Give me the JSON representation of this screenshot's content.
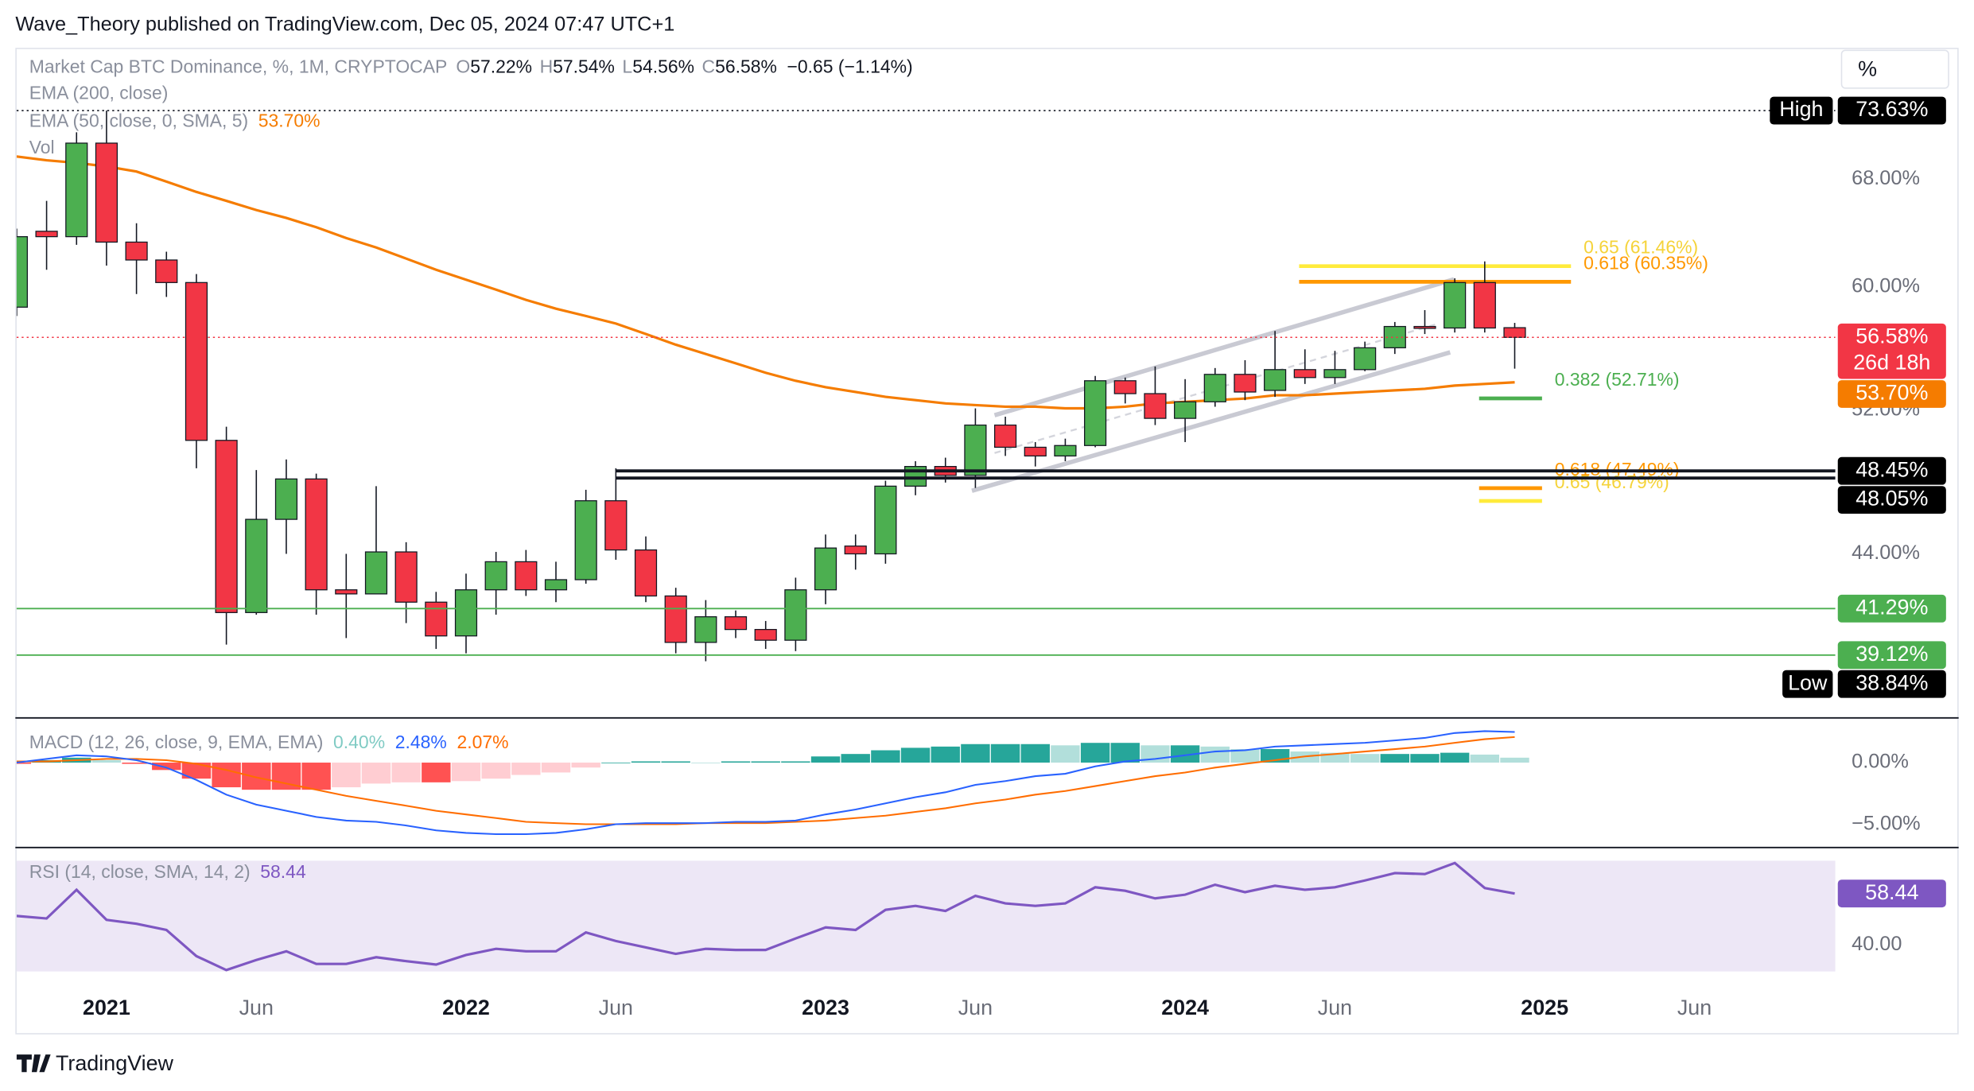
{
  "header": {
    "publisher": "Wave_Theory published on TradingView.com, Dec 05, 2024 07:47 UTC+1",
    "scale_button": "%",
    "brand": "TradingView"
  },
  "chart_data": [
    {
      "type": "candlestick",
      "title": "Market Cap BTC Dominance, %, 1M, CRYPTOCAP",
      "legend": {
        "open_key": "O",
        "open": "57.22%",
        "high_key": "H",
        "high": "57.54%",
        "low_key": "L",
        "low": "54.56%",
        "close_key": "C",
        "close": "56.58%",
        "change": "−0.65 (−1.14%)",
        "ema200": "EMA (200, close)",
        "volume": "Vol"
      },
      "colors": {
        "up": "#4caf50",
        "down": "#f23645"
      },
      "open": [
        58.6,
        64.0,
        63.6,
        70.9,
        63.2,
        61.9,
        60.3,
        50.2,
        41.1,
        45.8,
        48.0,
        42.2,
        42.0,
        44.1,
        41.6,
        40.0,
        42.2,
        43.6,
        42.2,
        42.7,
        46.8,
        44.2,
        41.9,
        39.7,
        40.9,
        40.3,
        39.8,
        42.2,
        44.4,
        44.0,
        47.6,
        48.7,
        48.2,
        51.1,
        49.8,
        49.3,
        49.9,
        53.8,
        53.0,
        51.5,
        52.5,
        54.2,
        53.2,
        54.5,
        54.0,
        54.5,
        55.9,
        57.3,
        57.2,
        60.3,
        57.22
      ],
      "high": [
        64.2,
        66.3,
        71.8,
        73.63,
        64.6,
        62.5,
        60.9,
        51.0,
        48.5,
        49.1,
        48.3,
        44.0,
        47.6,
        44.6,
        42.1,
        43.0,
        44.1,
        44.2,
        43.6,
        47.4,
        48.6,
        44.9,
        42.3,
        41.7,
        41.2,
        40.7,
        42.8,
        45.0,
        45.0,
        47.9,
        49.0,
        49.2,
        52.1,
        51.6,
        50.1,
        50.3,
        54.1,
        54.0,
        54.7,
        53.9,
        54.6,
        55.1,
        57.0,
        55.8,
        55.7,
        56.3,
        57.6,
        58.4,
        60.6,
        61.8,
        57.54
      ],
      "low": [
        58.0,
        61.2,
        63.0,
        61.5,
        59.5,
        59.3,
        48.6,
        39.6,
        41.0,
        44.0,
        41.0,
        39.9,
        42.0,
        40.6,
        39.4,
        39.2,
        41.0,
        41.9,
        41.6,
        42.5,
        43.7,
        41.6,
        39.2,
        38.84,
        39.9,
        39.4,
        39.3,
        41.5,
        43.2,
        43.5,
        47.1,
        47.8,
        47.5,
        49.3,
        48.7,
        49.0,
        49.8,
        52.4,
        51.1,
        50.1,
        52.2,
        52.6,
        52.8,
        53.6,
        53.6,
        54.4,
        55.5,
        56.8,
        56.9,
        56.9,
        54.56
      ],
      "close": [
        63.6,
        63.6,
        70.9,
        63.2,
        61.9,
        60.3,
        50.2,
        41.1,
        45.8,
        48.0,
        42.2,
        42.0,
        44.1,
        41.6,
        40.0,
        42.2,
        43.6,
        42.2,
        42.7,
        46.8,
        44.2,
        41.9,
        39.7,
        40.9,
        40.3,
        39.8,
        42.2,
        44.3,
        44.0,
        47.6,
        48.7,
        48.2,
        51.1,
        49.8,
        49.3,
        49.9,
        53.8,
        53.0,
        51.5,
        52.5,
        54.2,
        53.1,
        54.5,
        54.0,
        54.5,
        55.9,
        57.3,
        57.2,
        60.3,
        57.2,
        56.58
      ],
      "overlays": [
        {
          "name": "EMA (50, close, 0, SMA, 5)",
          "last_label": "53.70%",
          "color": "#f57c00",
          "values": [
            69.8,
            69.5,
            69.3,
            69.0,
            68.6,
            67.8,
            67.0,
            66.3,
            65.6,
            65.0,
            64.3,
            63.5,
            62.8,
            62.0,
            61.2,
            60.5,
            59.8,
            59.1,
            58.5,
            58.0,
            57.5,
            56.8,
            56.1,
            55.5,
            54.9,
            54.3,
            53.8,
            53.4,
            53.1,
            52.8,
            52.6,
            52.4,
            52.3,
            52.2,
            52.2,
            52.1,
            52.1,
            52.2,
            52.4,
            52.5,
            52.6,
            52.7,
            52.9,
            52.9,
            53.0,
            53.1,
            53.2,
            53.3,
            53.5,
            53.6,
            53.7
          ]
        }
      ],
      "xlim": [
        0,
        60.7
      ],
      "xticks": [
        {
          "value": 3,
          "label": "2021"
        },
        {
          "value": 8,
          "label": "Jun"
        },
        {
          "value": 15,
          "label": "2022"
        },
        {
          "value": 20,
          "label": "Jun"
        },
        {
          "value": 27,
          "label": "2023"
        },
        {
          "value": 32,
          "label": "Jun"
        },
        {
          "value": 39,
          "label": "2024"
        },
        {
          "value": 44,
          "label": "Jun"
        },
        {
          "value": 51,
          "label": "2025"
        },
        {
          "value": 56,
          "label": "Jun"
        }
      ],
      "ylim": [
        36.5,
        79.2
      ],
      "log": true,
      "yticks": [
        {
          "value": 44,
          "label": "44.00%"
        },
        {
          "value": 52,
          "label": "52.00%"
        },
        {
          "value": 60,
          "label": "60.00%"
        },
        {
          "value": 68,
          "label": "68.00%"
        }
      ],
      "fib_levels": [
        {
          "value": 61.46,
          "label": "0.65 (61.46%)",
          "color": "#ffeb3b",
          "text_color": "#f5d33a"
        },
        {
          "value": 60.35,
          "label": "0.618 (60.35%)",
          "color": "#ff9800",
          "text_color": "#ff9800"
        },
        {
          "value": 52.71,
          "label": "0.382 (52.71%)",
          "color": "#4caf50",
          "text_color": "#4caf50"
        },
        {
          "value": 47.49,
          "label": "0.618 (47.49%)",
          "color": "#ff9800",
          "text_color": "#ff9800"
        },
        {
          "value": 46.79,
          "label": "0.65 (46.79%)",
          "color": "#ffeb3b",
          "text_color": "#f5d33a"
        }
      ],
      "price_labels": [
        {
          "value": 73.63,
          "label": "73.63%",
          "tag": "High",
          "color": "#000000",
          "line": "dotted"
        },
        {
          "value": 56.58,
          "label": "56.58%",
          "sub": "26d 18h",
          "color": "#f23645",
          "line": "dotted"
        },
        {
          "value": 53.7,
          "label": "53.70%",
          "color": "#f57c00"
        },
        {
          "value": 48.45,
          "label": "48.45%",
          "color": "#000000",
          "line": "solid"
        },
        {
          "value": 48.05,
          "label": "48.05%",
          "color": "#000000",
          "line": "solid"
        },
        {
          "value": 41.29,
          "label": "41.29%",
          "color": "#4caf50",
          "line": "solid"
        },
        {
          "value": 39.12,
          "label": "39.12%",
          "color": "#4caf50",
          "line": "solid"
        },
        {
          "value": 38.84,
          "label": "38.84%",
          "tag": "Low",
          "color": "#000000"
        }
      ]
    },
    {
      "type": "macd",
      "title": "MACD (12, 26, close, 9, EMA, EMA)",
      "histogram": {
        "last_label": "0.40%",
        "colors": {
          "rise_up": "#26a69a",
          "fall_up": "#b2dfdb",
          "fall_down": "#ff5252",
          "rise_down": "#ffcdd2"
        },
        "values": [
          -0.1,
          0.2,
          0.4,
          0.2,
          -0.1,
          -0.6,
          -1.3,
          -2.0,
          -2.2,
          -2.2,
          -2.2,
          -2.0,
          -1.7,
          -1.6,
          -1.6,
          -1.5,
          -1.3,
          -1.0,
          -0.8,
          -0.4,
          0,
          0.1,
          0.1,
          0,
          0.1,
          0.1,
          0.1,
          0.5,
          0.7,
          1.0,
          1.2,
          1.3,
          1.5,
          1.5,
          1.5,
          1.4,
          1.6,
          1.6,
          1.4,
          1.4,
          1.3,
          1.1,
          1.1,
          0.9,
          0.8,
          0.7,
          0.7,
          0.7,
          0.8,
          0.65,
          0.4
        ]
      },
      "macd": {
        "last_label": "2.48%",
        "color": "#2962ff",
        "values": [
          0.0,
          0.3,
          0.6,
          0.5,
          0.2,
          -0.4,
          -1.4,
          -2.6,
          -3.4,
          -3.9,
          -4.4,
          -4.7,
          -4.8,
          -5.1,
          -5.5,
          -5.7,
          -5.8,
          -5.8,
          -5.7,
          -5.4,
          -5.0,
          -4.9,
          -4.9,
          -4.9,
          -4.8,
          -4.8,
          -4.7,
          -4.2,
          -3.8,
          -3.3,
          -2.8,
          -2.4,
          -1.8,
          -1.5,
          -1.1,
          -0.9,
          -0.3,
          0.1,
          0.3,
          0.6,
          0.9,
          1.0,
          1.3,
          1.4,
          1.5,
          1.6,
          1.8,
          2.0,
          2.4,
          2.55,
          2.48
        ]
      },
      "signal": {
        "last_label": "2.07%",
        "color": "#ff6d00",
        "values": [
          0.1,
          0.1,
          0.2,
          0.3,
          0.3,
          0.2,
          -0.1,
          -0.6,
          -1.2,
          -1.7,
          -2.2,
          -2.7,
          -3.1,
          -3.5,
          -3.9,
          -4.2,
          -4.5,
          -4.8,
          -4.9,
          -5.0,
          -5.0,
          -5.0,
          -5.0,
          -4.9,
          -4.9,
          -4.9,
          -4.8,
          -4.7,
          -4.5,
          -4.3,
          -4.0,
          -3.7,
          -3.3,
          -3.0,
          -2.6,
          -2.3,
          -1.9,
          -1.5,
          -1.1,
          -0.8,
          -0.4,
          -0.1,
          0.2,
          0.5,
          0.7,
          0.9,
          1.1,
          1.3,
          1.6,
          1.9,
          2.07
        ]
      },
      "ylim": [
        -6.73,
        3.37
      ],
      "yticks": [
        {
          "value": 0,
          "label": "0.00%"
        },
        {
          "value": -5,
          "label": "−5.00%"
        }
      ]
    },
    {
      "type": "line",
      "title": "RSI (14, close, SMA, 14, 2)",
      "color": "#7e57c2",
      "values": [
        50.4,
        49.5,
        59.8,
        49,
        47.6,
        45.4,
        36,
        31,
        34.6,
        37.7,
        33.2,
        33.2,
        35.6,
        34.2,
        33,
        36.4,
        38.6,
        37.7,
        37.7,
        44.5,
        41.4,
        39.1,
        36.8,
        38.6,
        38.2,
        38.2,
        42.3,
        46.3,
        45.4,
        52.6,
        54,
        52.2,
        57.6,
        54.9,
        54,
        54.9,
        60.7,
        59.4,
        56.7,
        58,
        61.6,
        58.9,
        61.2,
        59.8,
        60.7,
        63.1,
        65.8,
        65.4,
        69.4,
        60.4,
        58.44
      ],
      "ylim": [
        30.5,
        70.2
      ],
      "yticks": [
        {
          "value": 40,
          "label": "40.00"
        }
      ]
    }
  ]
}
